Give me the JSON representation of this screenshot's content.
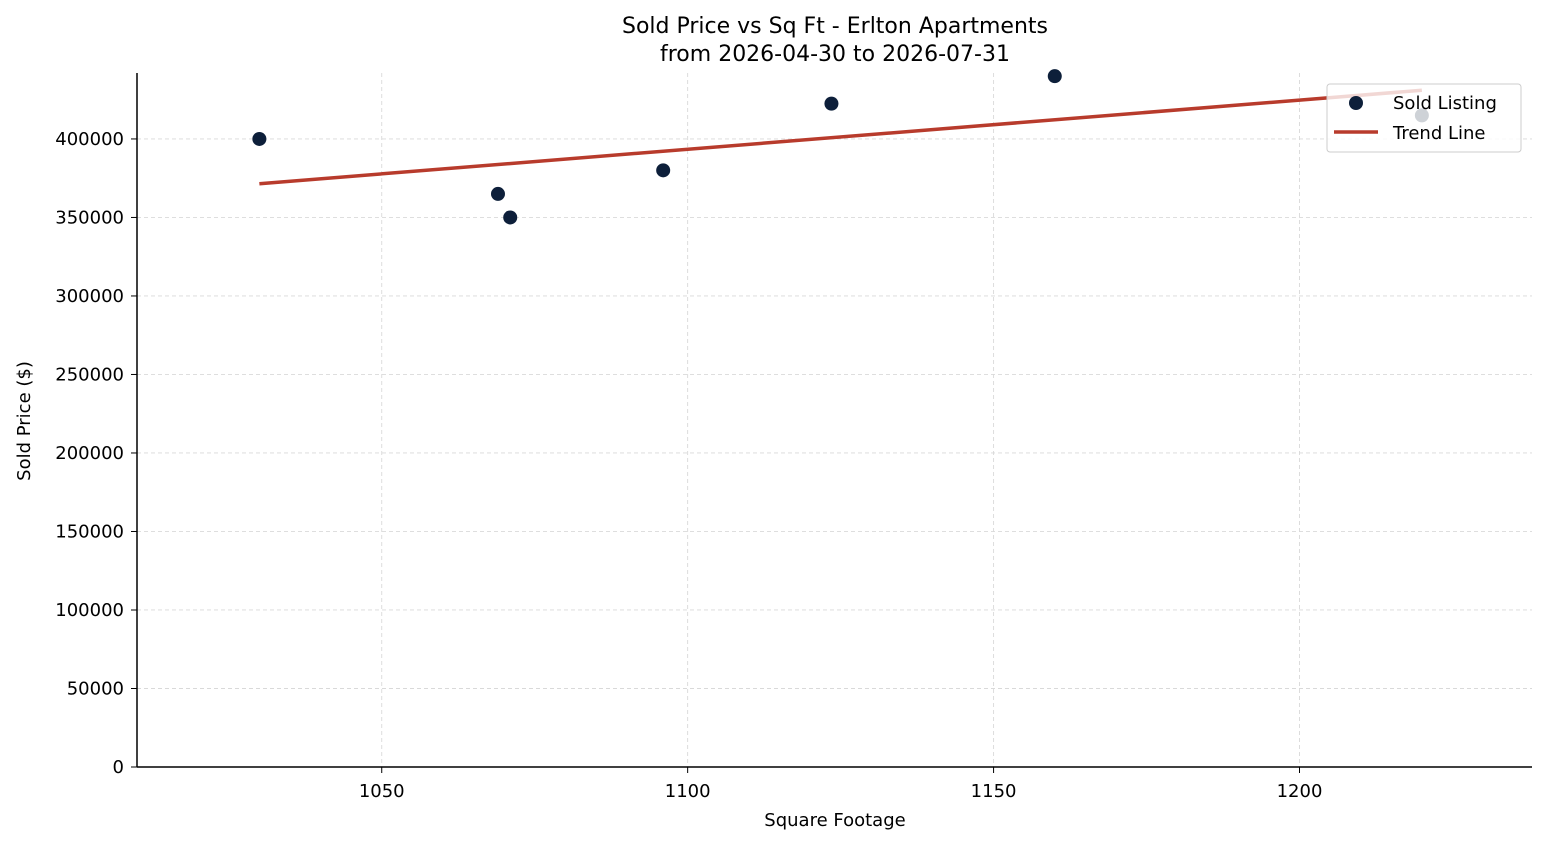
{
  "chart_data": {
    "type": "scatter",
    "title": "Sold Price vs Sq Ft - Erlton Apartments",
    "subtitle": "from 2026-04-30 to 2026-07-31",
    "xlabel": "Square Footage",
    "ylabel": "Sold Price ($)",
    "xlim": [
      1010,
      1238
    ],
    "ylim": [
      0,
      442000
    ],
    "xticks": [
      "1050",
      "1100",
      "1150",
      "1200"
    ],
    "yticks": [
      "0",
      "50000",
      "100000",
      "150000",
      "200000",
      "250000",
      "300000",
      "350000",
      "400000"
    ],
    "grid": true,
    "legend_position": "top-right",
    "series": [
      {
        "name": "Sold Listing",
        "kind": "scatter",
        "color": "#0d1f3a",
        "points": [
          {
            "x": 1030,
            "y": 400000
          },
          {
            "x": 1069,
            "y": 365000
          },
          {
            "x": 1071,
            "y": 350000
          },
          {
            "x": 1096,
            "y": 380000
          },
          {
            "x": 1123.5,
            "y": 422500
          },
          {
            "x": 1160,
            "y": 440000
          },
          {
            "x": 1220,
            "y": 415000
          }
        ]
      },
      {
        "name": "Trend Line",
        "kind": "line",
        "color": "#b83b2c",
        "points": [
          {
            "x": 1030,
            "y": 371500
          },
          {
            "x": 1220,
            "y": 431000
          }
        ]
      }
    ]
  }
}
